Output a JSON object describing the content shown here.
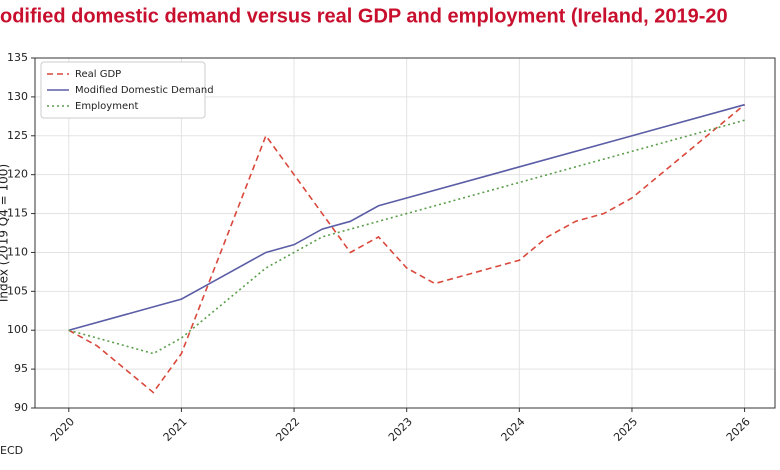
{
  "chart_data": {
    "type": "line",
    "title": "odified domestic demand versus real GDP and employment (Ireland, 2019-20",
    "y_label": "Index (2019 Q4 = 100)",
    "source": "ECD",
    "xlim": [
      2019.7,
      2026.27
    ],
    "xticks": [
      2020,
      2021,
      2022,
      2023,
      2024,
      2025,
      2026
    ],
    "ylim": [
      90,
      135
    ],
    "yticks": [
      90,
      95,
      100,
      105,
      110,
      115,
      120,
      125,
      130,
      135
    ],
    "grid": true,
    "legend": "upper-left",
    "series": [
      {
        "name": "Real GDP",
        "color": "#d9483b",
        "linestyle": "dashed",
        "x": [
          2020,
          2020.25,
          2020.75,
          2021,
          2021.75,
          2022.5,
          2022.75,
          2023,
          2023.25,
          2024,
          2024.25,
          2024.5,
          2024.75,
          2025,
          2026
        ],
        "values": [
          100,
          98,
          92,
          97,
          125,
          110,
          112,
          108,
          106,
          109,
          112,
          114,
          115,
          117,
          129
        ]
      },
      {
        "name": "Modified Domestic Demand",
        "color": "#5b5ea6",
        "linestyle": "solid",
        "x": [
          2020,
          2020.75,
          2021,
          2021.25,
          2021.75,
          2022,
          2022.25,
          2022.5,
          2022.75,
          2026
        ],
        "values": [
          100,
          103,
          104,
          106,
          110,
          111,
          113,
          114,
          116,
          129
        ]
      },
      {
        "name": "Employment",
        "color": "#5a9e4b",
        "linestyle": "dotted",
        "x": [
          2020,
          2020.75,
          2021,
          2021.75,
          2022,
          2022.25,
          2026
        ],
        "values": [
          100,
          97,
          99,
          108,
          110,
          112,
          127
        ]
      }
    ]
  }
}
